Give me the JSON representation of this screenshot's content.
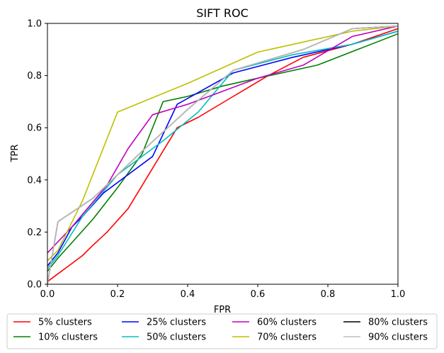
{
  "chart_data": {
    "type": "line",
    "title": "SIFT ROC",
    "xlabel": "FPR",
    "ylabel": "TPR",
    "xlim": [
      0,
      1
    ],
    "ylim": [
      0,
      1
    ],
    "xticks": [
      "0.0",
      "0.2",
      "0.4",
      "0.6",
      "0.8",
      "1.0"
    ],
    "yticks": [
      "0.0",
      "0.2",
      "0.4",
      "0.6",
      "0.8",
      "1.0"
    ],
    "grid": false,
    "legend_position": "bottom, below axes",
    "series": [
      {
        "name": "5% clusters",
        "color": "#ff0000",
        "x": [
          0,
          0.03,
          0.07,
          0.1,
          0.13,
          0.17,
          0.23,
          0.37,
          0.43,
          0.53,
          0.63,
          0.73,
          0.87,
          1.0
        ],
        "y": [
          0.01,
          0.04,
          0.08,
          0.11,
          0.15,
          0.2,
          0.29,
          0.6,
          0.64,
          0.72,
          0.8,
          0.87,
          0.92,
          0.98
        ]
      },
      {
        "name": "10% clusters",
        "color": "#008000",
        "x": [
          0,
          0.03,
          0.07,
          0.13,
          0.2,
          0.27,
          0.33,
          0.4,
          0.5,
          0.6,
          0.77,
          1.0
        ],
        "y": [
          0.05,
          0.1,
          0.16,
          0.25,
          0.37,
          0.5,
          0.7,
          0.72,
          0.76,
          0.79,
          0.84,
          0.96
        ]
      },
      {
        "name": "25% clusters",
        "color": "#0000ff",
        "x": [
          0,
          0.03,
          0.07,
          0.1,
          0.16,
          0.23,
          0.3,
          0.37,
          0.53,
          0.7,
          0.87,
          1.0
        ],
        "y": [
          0.07,
          0.12,
          0.22,
          0.26,
          0.35,
          0.42,
          0.49,
          0.69,
          0.81,
          0.87,
          0.92,
          0.97
        ]
      },
      {
        "name": "50% clusters",
        "color": "#00bfbf",
        "x": [
          0,
          0.03,
          0.1,
          0.2,
          0.33,
          0.43,
          0.53,
          0.7,
          0.87,
          1.0
        ],
        "y": [
          0.06,
          0.11,
          0.26,
          0.42,
          0.55,
          0.66,
          0.82,
          0.88,
          0.92,
          0.97
        ]
      },
      {
        "name": "60% clusters",
        "color": "#bf00bf",
        "x": [
          0,
          0.07,
          0.17,
          0.23,
          0.3,
          0.4,
          0.5,
          0.6,
          0.73,
          0.87,
          1.0
        ],
        "y": [
          0.12,
          0.22,
          0.38,
          0.52,
          0.65,
          0.69,
          0.74,
          0.79,
          0.84,
          0.95,
          0.99
        ]
      },
      {
        "name": "70% clusters",
        "color": "#bfbf00",
        "x": [
          0,
          0.03,
          0.1,
          0.2,
          0.4,
          0.6,
          0.87,
          1.0
        ],
        "y": [
          0.09,
          0.13,
          0.32,
          0.66,
          0.77,
          0.89,
          0.97,
          0.99
        ]
      },
      {
        "name": "80% clusters",
        "color": "#000000",
        "x": [
          0,
          0.03,
          0.13,
          0.27,
          0.4,
          0.53,
          0.73,
          0.87,
          1.0
        ],
        "y": [
          0.0,
          0.24,
          0.33,
          0.51,
          0.67,
          0.82,
          0.9,
          0.98,
          0.99
        ]
      },
      {
        "name": "90% clusters",
        "color": "#bfbfbf",
        "x": [
          0,
          0.03,
          0.13,
          0.27,
          0.4,
          0.53,
          0.73,
          0.87,
          1.0
        ],
        "y": [
          0.0,
          0.24,
          0.33,
          0.51,
          0.67,
          0.82,
          0.9,
          0.98,
          0.99
        ]
      }
    ]
  }
}
